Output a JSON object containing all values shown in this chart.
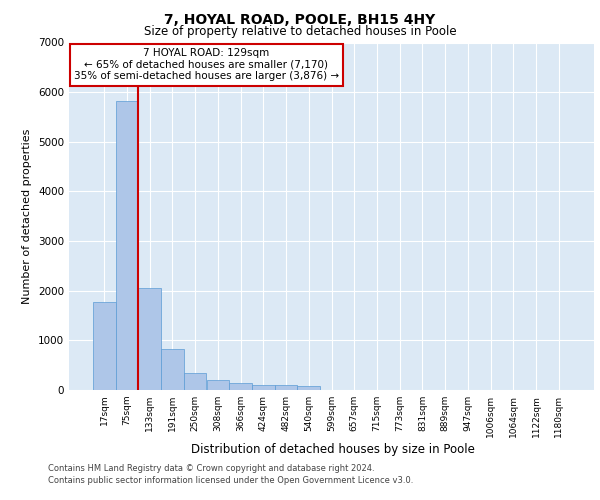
{
  "title_line1": "7, HOYAL ROAD, POOLE, BH15 4HY",
  "title_line2": "Size of property relative to detached houses in Poole",
  "xlabel": "Distribution of detached houses by size in Poole",
  "ylabel": "Number of detached properties",
  "bin_labels": [
    "17sqm",
    "75sqm",
    "133sqm",
    "191sqm",
    "250sqm",
    "308sqm",
    "366sqm",
    "424sqm",
    "482sqm",
    "540sqm",
    "599sqm",
    "657sqm",
    "715sqm",
    "773sqm",
    "831sqm",
    "889sqm",
    "947sqm",
    "1006sqm",
    "1064sqm",
    "1122sqm",
    "1180sqm"
  ],
  "bar_values": [
    1780,
    5820,
    2060,
    830,
    345,
    195,
    135,
    105,
    95,
    75,
    0,
    0,
    0,
    0,
    0,
    0,
    0,
    0,
    0,
    0,
    0
  ],
  "bar_color": "#aec6e8",
  "bar_edge_color": "#5b9bd5",
  "vline_x_bar_index": 1.5,
  "vline_color": "#cc0000",
  "annotation_text": "7 HOYAL ROAD: 129sqm\n← 65% of detached houses are smaller (7,170)\n35% of semi-detached houses are larger (3,876) →",
  "annotation_box_color": "#cc0000",
  "ylim": [
    0,
    7000
  ],
  "yticks": [
    0,
    1000,
    2000,
    3000,
    4000,
    5000,
    6000,
    7000
  ],
  "footer_line1": "Contains HM Land Registry data © Crown copyright and database right 2024.",
  "footer_line2": "Contains public sector information licensed under the Open Government Licence v3.0.",
  "plot_bg_color": "#dce9f5",
  "fig_bg_color": "#ffffff",
  "grid_color": "#ffffff",
  "title1_fontsize": 10,
  "title2_fontsize": 8.5,
  "ylabel_fontsize": 8,
  "xlabel_fontsize": 8.5,
  "tick_fontsize": 6.5,
  "ann_fontsize": 7.5,
  "footer_fontsize": 6
}
